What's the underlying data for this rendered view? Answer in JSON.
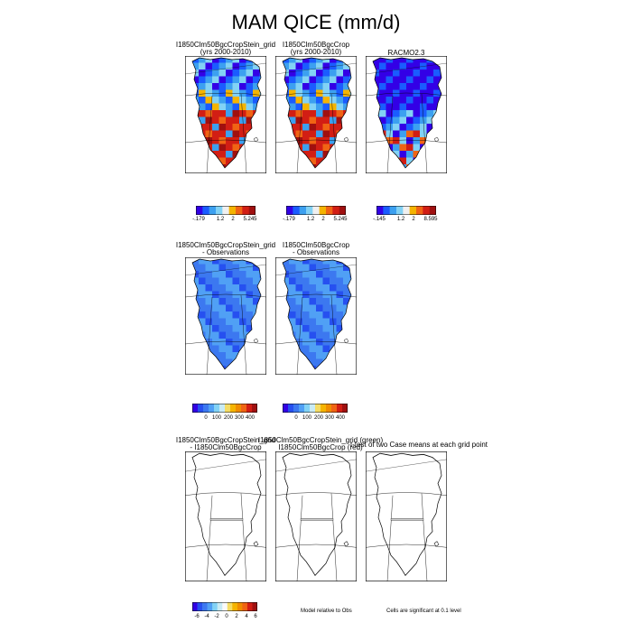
{
  "page": {
    "title": "MAM QICE (mm/d)"
  },
  "panel_labels": {
    "p1_l1": "I1850Clm50BgcCropStein_grid",
    "p1_l2": "(yrs 2000-2010)",
    "p2_l1": "I1850Clm50BgcCrop",
    "p2_l2": "(yrs 2000-2010)",
    "p3_l1": "RACMO2.3",
    "p4_l1": "I1850Clm50BgcCropStein_grid",
    "p4_l2": "- Observations",
    "p5_l1": "I1850Clm50BgcCrop",
    "p5_l2": "- Observations",
    "p6_l1": "I1850Clm50BgcCropStein_grid",
    "p6_l2": "- I1850Clm50BgcCrop",
    "p7_l1": "I1850Clm50BgcCropStein_grid (green)",
    "p7_l2": "I1850Clm50BgcCrop (red)",
    "p8_l1": "t-test of two Case means at each grid point"
  },
  "notes": {
    "model_relative": "Model relative to Obs",
    "significance": "Cells are significant at 0.1 level"
  },
  "chart_data": [
    {
      "type": "heatmap",
      "name_line1": "I1850Clm50BgcCropStein_grid",
      "name_line2": "(yrs 2000-2010)",
      "pattern": "melt",
      "colorbar_ticks": [
        "-.179",
        "1.2",
        "2",
        "5.245"
      ]
    },
    {
      "type": "heatmap",
      "name_line1": "I1850Clm50BgcCrop",
      "name_line2": "(yrs 2000-2010)",
      "pattern": "melt",
      "colorbar_ticks": [
        "-.179",
        "1.2",
        "2",
        "5.245"
      ]
    },
    {
      "type": "heatmap",
      "name_line1": "RACMO2.3",
      "pattern": "racmo",
      "colorbar_ticks": [
        "-.145",
        "1.2",
        "2",
        "8.595"
      ]
    },
    {
      "type": "heatmap",
      "name_line1": "I1850Clm50BgcCropStein_grid",
      "name_line2": "- Observations",
      "pattern": "blue",
      "colorbar_ticks": [
        "0",
        "100",
        "200",
        "300",
        "400"
      ]
    },
    {
      "type": "heatmap",
      "name_line1": "I1850Clm50BgcCrop",
      "name_line2": "- Observations",
      "pattern": "blue",
      "colorbar_ticks": [
        "0",
        "100",
        "200",
        "300",
        "400"
      ]
    },
    {
      "type": "heatmap",
      "pattern": "empty",
      "colorbar_ticks": [
        "-6",
        "-4",
        "-2",
        "0",
        "2",
        "4",
        "6"
      ]
    },
    {
      "type": "heatmap",
      "pattern": "empty"
    },
    {
      "type": "heatmap",
      "pattern": "empty"
    }
  ],
  "colormaps": {
    "melt": [
      "#3300e6",
      "#1a5cff",
      "#3ca0f0",
      "#82d2f5",
      "#f0f0f0",
      "#f5b400",
      "#f06414",
      "#d21e14",
      "#a01010"
    ],
    "blue": [
      "#3300e6",
      "#2650f0",
      "#3c78f0",
      "#50a0f5",
      "#82d2f5",
      "#c8ebf5",
      "#f5dc64",
      "#f5b400",
      "#f08c00",
      "#f06414",
      "#d21e14",
      "#a01010"
    ],
    "diff": [
      "#3300e6",
      "#2650f0",
      "#3c78f0",
      "#50a0f5",
      "#82d2f5",
      "#c8ebf5",
      "#fafafa",
      "#f5dc64",
      "#f5b400",
      "#f08c00",
      "#f06414",
      "#d21e14",
      "#a01010"
    ]
  }
}
